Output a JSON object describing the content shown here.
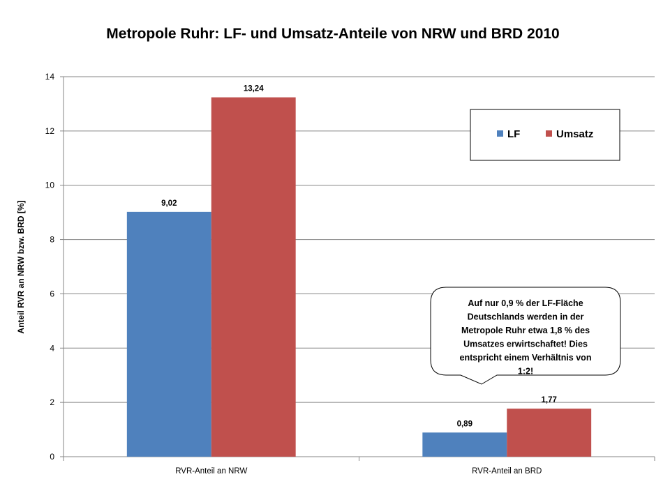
{
  "chart_data": {
    "type": "bar",
    "title": "Metropole Ruhr: LF- und Umsatz-Anteile von NRW und BRD 2010",
    "xlabel": "",
    "ylabel": "Anteil RVR an NRW bzw. BRD [%]",
    "categories": [
      "RVR-Anteil an NRW",
      "RVR-Anteil an BRD"
    ],
    "series": [
      {
        "name": "LF",
        "values": [
          9.02,
          0.89
        ],
        "labels": [
          "9,02",
          "0,89"
        ],
        "color": "#4F81BD"
      },
      {
        "name": "Umsatz",
        "values": [
          13.24,
          1.77
        ],
        "labels": [
          "13,24",
          "1,77"
        ],
        "color": "#C0504D"
      }
    ],
    "ylim": [
      0,
      14
    ],
    "yticks": [
      0,
      2,
      4,
      6,
      8,
      10,
      12,
      14
    ],
    "grid": true,
    "legend_position": "top-right",
    "annotation": {
      "lines": [
        "Auf nur 0,9 % der LF-Fläche",
        "Deutschlands werden in der",
        "Metropole Ruhr etwa 1,8 % des",
        "Umsatzes erwirtschaftet! Dies",
        "entspricht einem Verhältnis von",
        "1:2!"
      ]
    }
  }
}
